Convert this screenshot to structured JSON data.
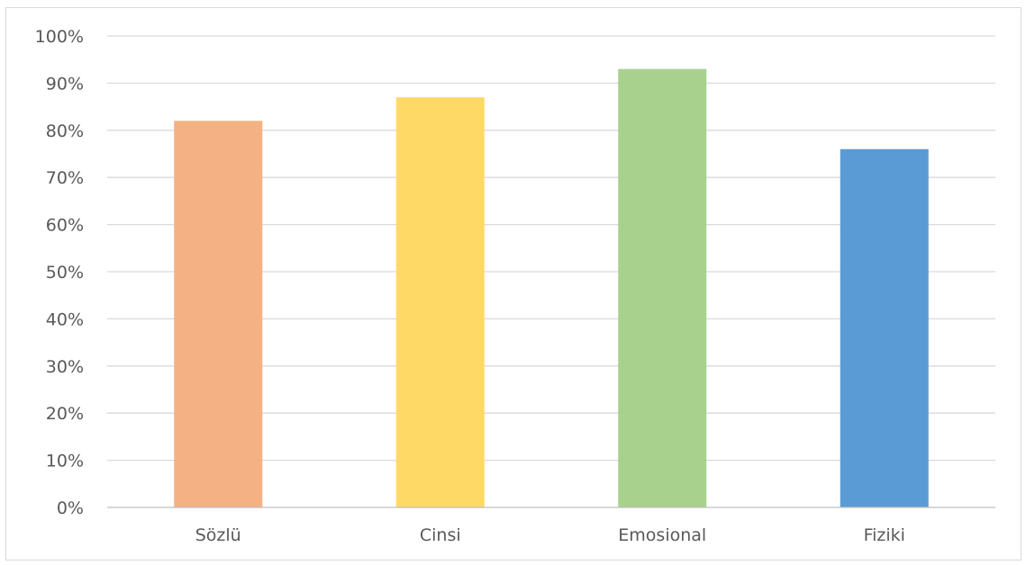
{
  "chart_data": {
    "type": "bar",
    "title": "",
    "xlabel": "",
    "ylabel": "",
    "categories": [
      "Sözlü",
      "Cinsi",
      "Emosional",
      "Fiziki"
    ],
    "values": [
      0.82,
      0.87,
      0.93,
      0.76
    ],
    "colors": [
      "#f4b183",
      "#ffd966",
      "#a9d18e",
      "#5b9bd5"
    ],
    "ylim": [
      0,
      1
    ],
    "yticks": [
      "0%",
      "10%",
      "20%",
      "30%",
      "40%",
      "50%",
      "60%",
      "70%",
      "80%",
      "90%",
      "100%"
    ],
    "grid": true,
    "legend": "none"
  }
}
